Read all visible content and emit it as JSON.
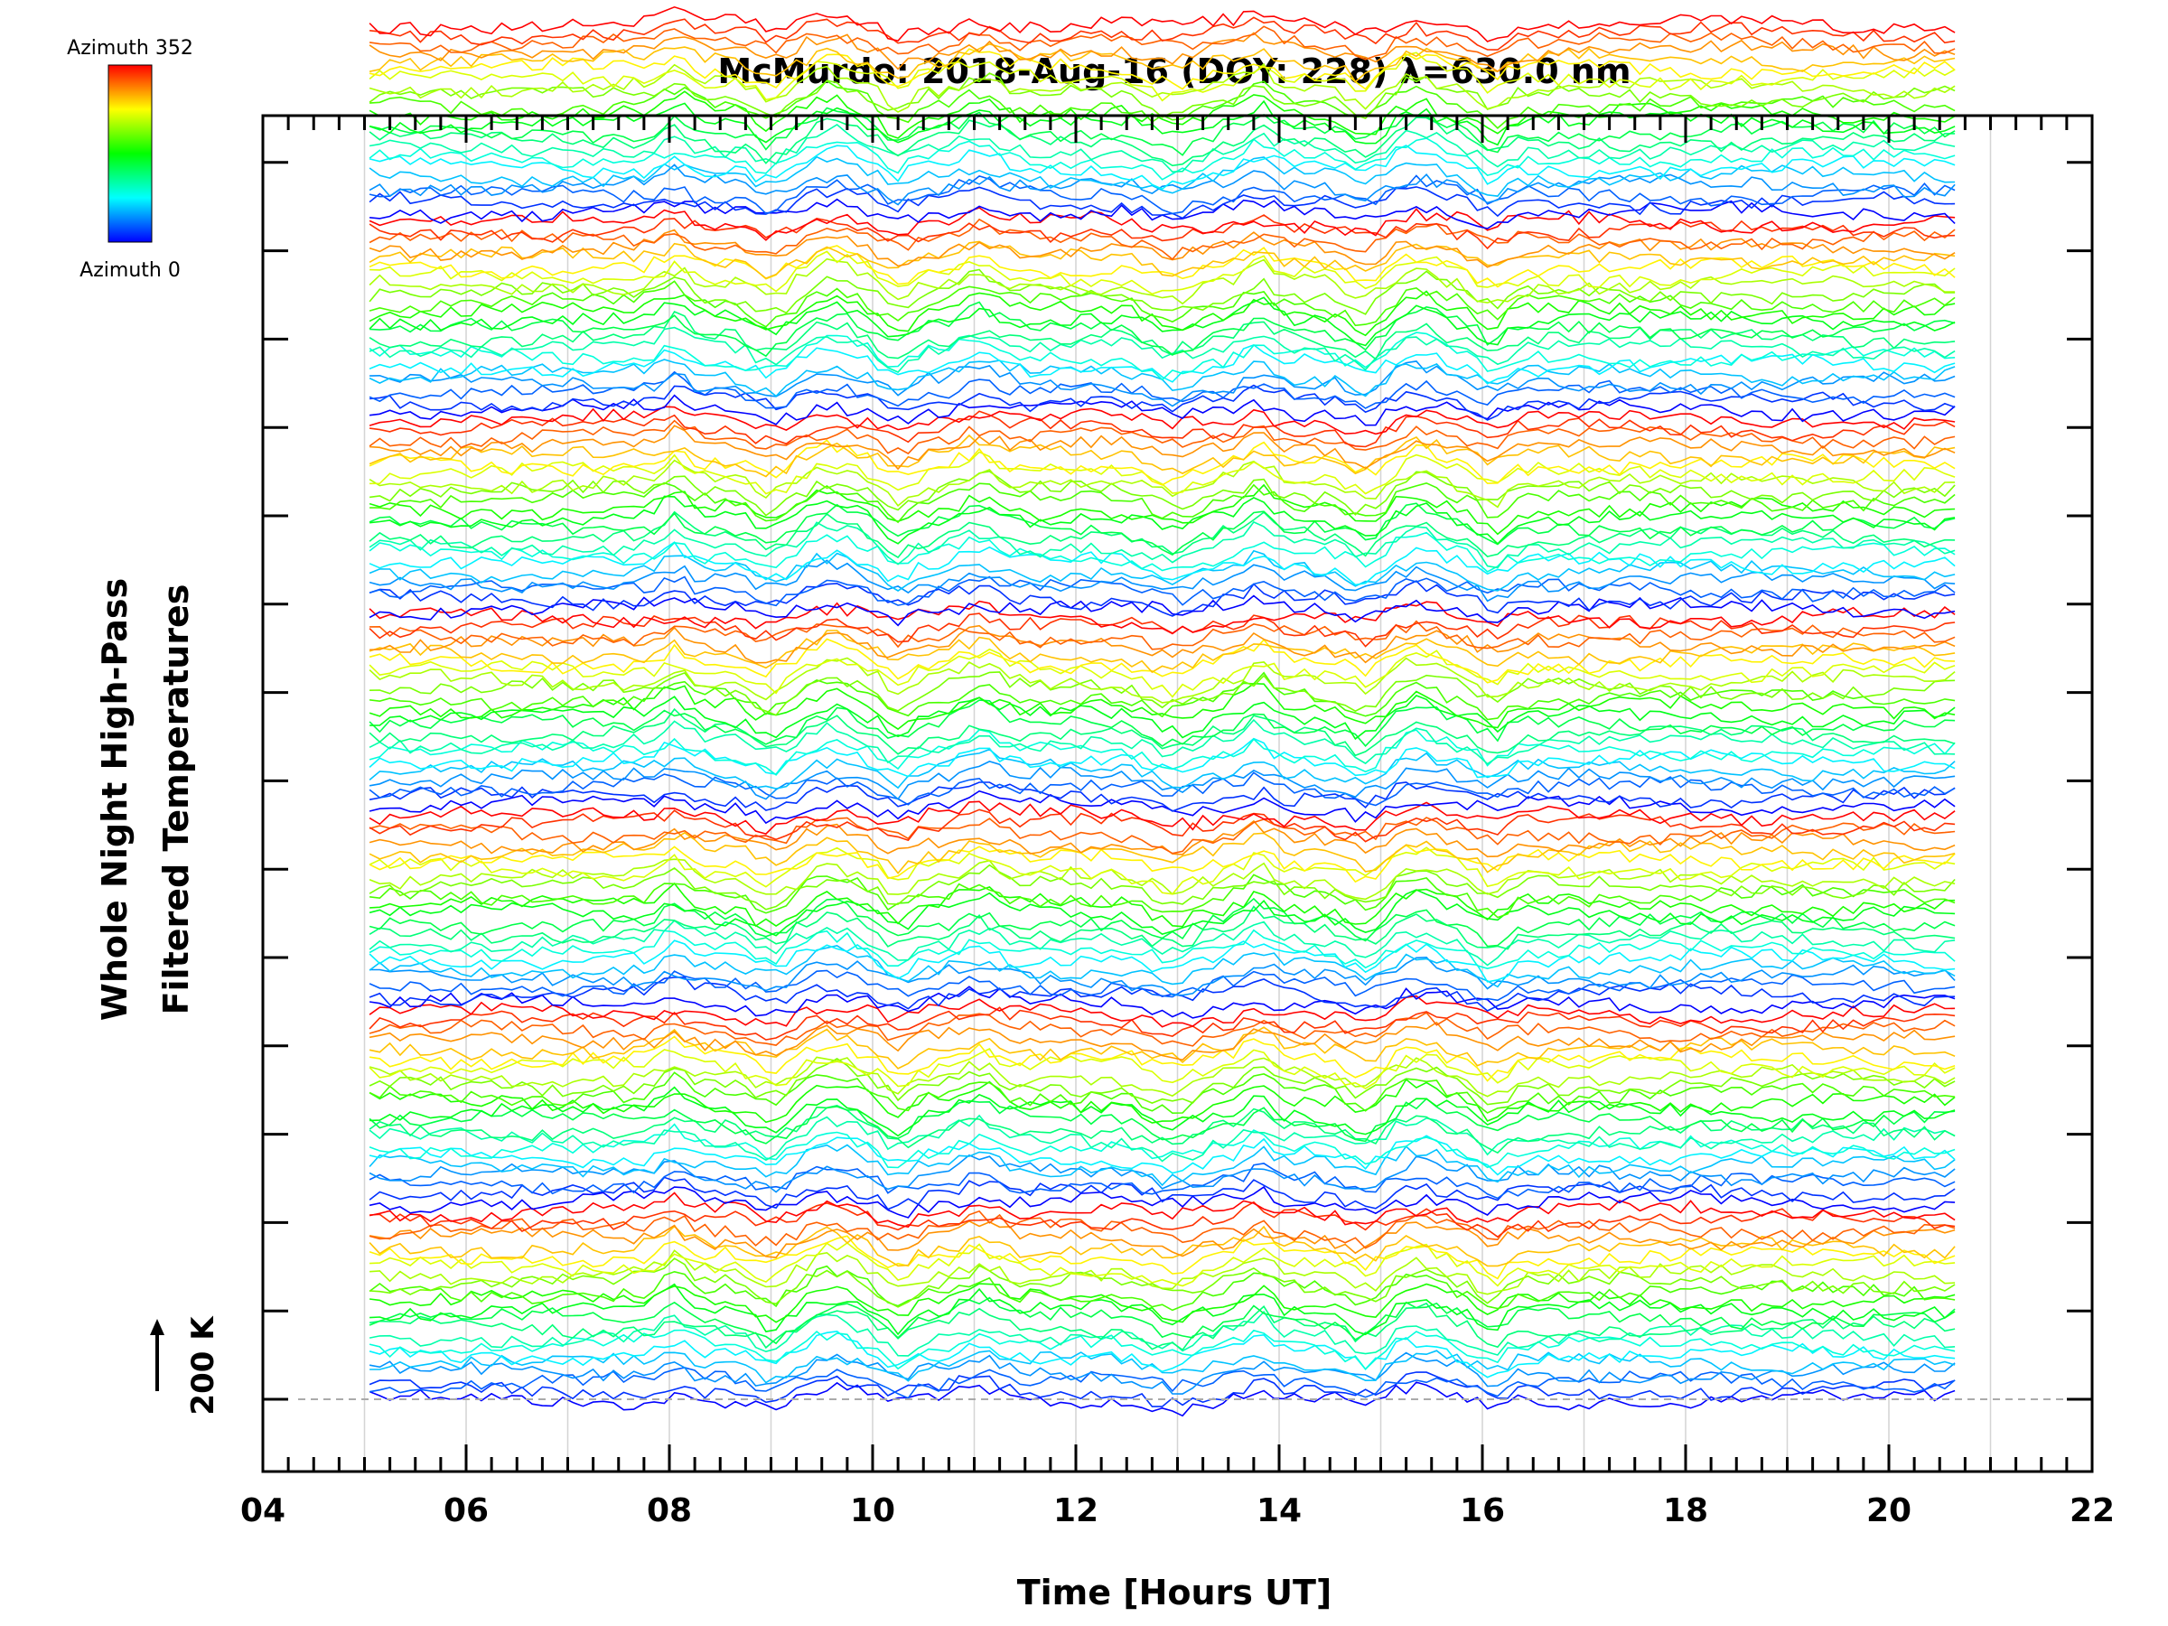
{
  "chart_data": {
    "type": "line",
    "title": "McMurdo: 2018-Aug-16 (DOY: 228) λ=630.0 nm",
    "xlabel": "Time [Hours UT]",
    "ylabel_line1": "Whole Night High-Pass",
    "ylabel_line2": "Filtered Temperatures",
    "xlim": [
      4,
      22
    ],
    "x_tick_labels": [
      "04",
      "06",
      "08",
      "10",
      "12",
      "14",
      "16",
      "18",
      "20",
      "22"
    ],
    "x_tick_values": [
      4,
      6,
      8,
      10,
      12,
      14,
      16,
      18,
      20,
      22
    ],
    "data_time_range": [
      5.05,
      20.7
    ],
    "scale_bar_label": "200 K",
    "colorbar": {
      "top_label": "Azimuth 352",
      "bottom_label": "Azimuth 0",
      "min": 0,
      "max": 352
    },
    "groups": 7,
    "traces_per_group": 22,
    "group_offsets": [
      0,
      1,
      2,
      3,
      4,
      5,
      6
    ],
    "features_hours": [
      8.05,
      9.0,
      9.6,
      10.25,
      11.05,
      12.95,
      13.8,
      14.85,
      15.35,
      16.1
    ],
    "colors": [
      "#0000ff",
      "#00ffff",
      "#00ff00",
      "#ffff00",
      "#ff0000"
    ]
  }
}
